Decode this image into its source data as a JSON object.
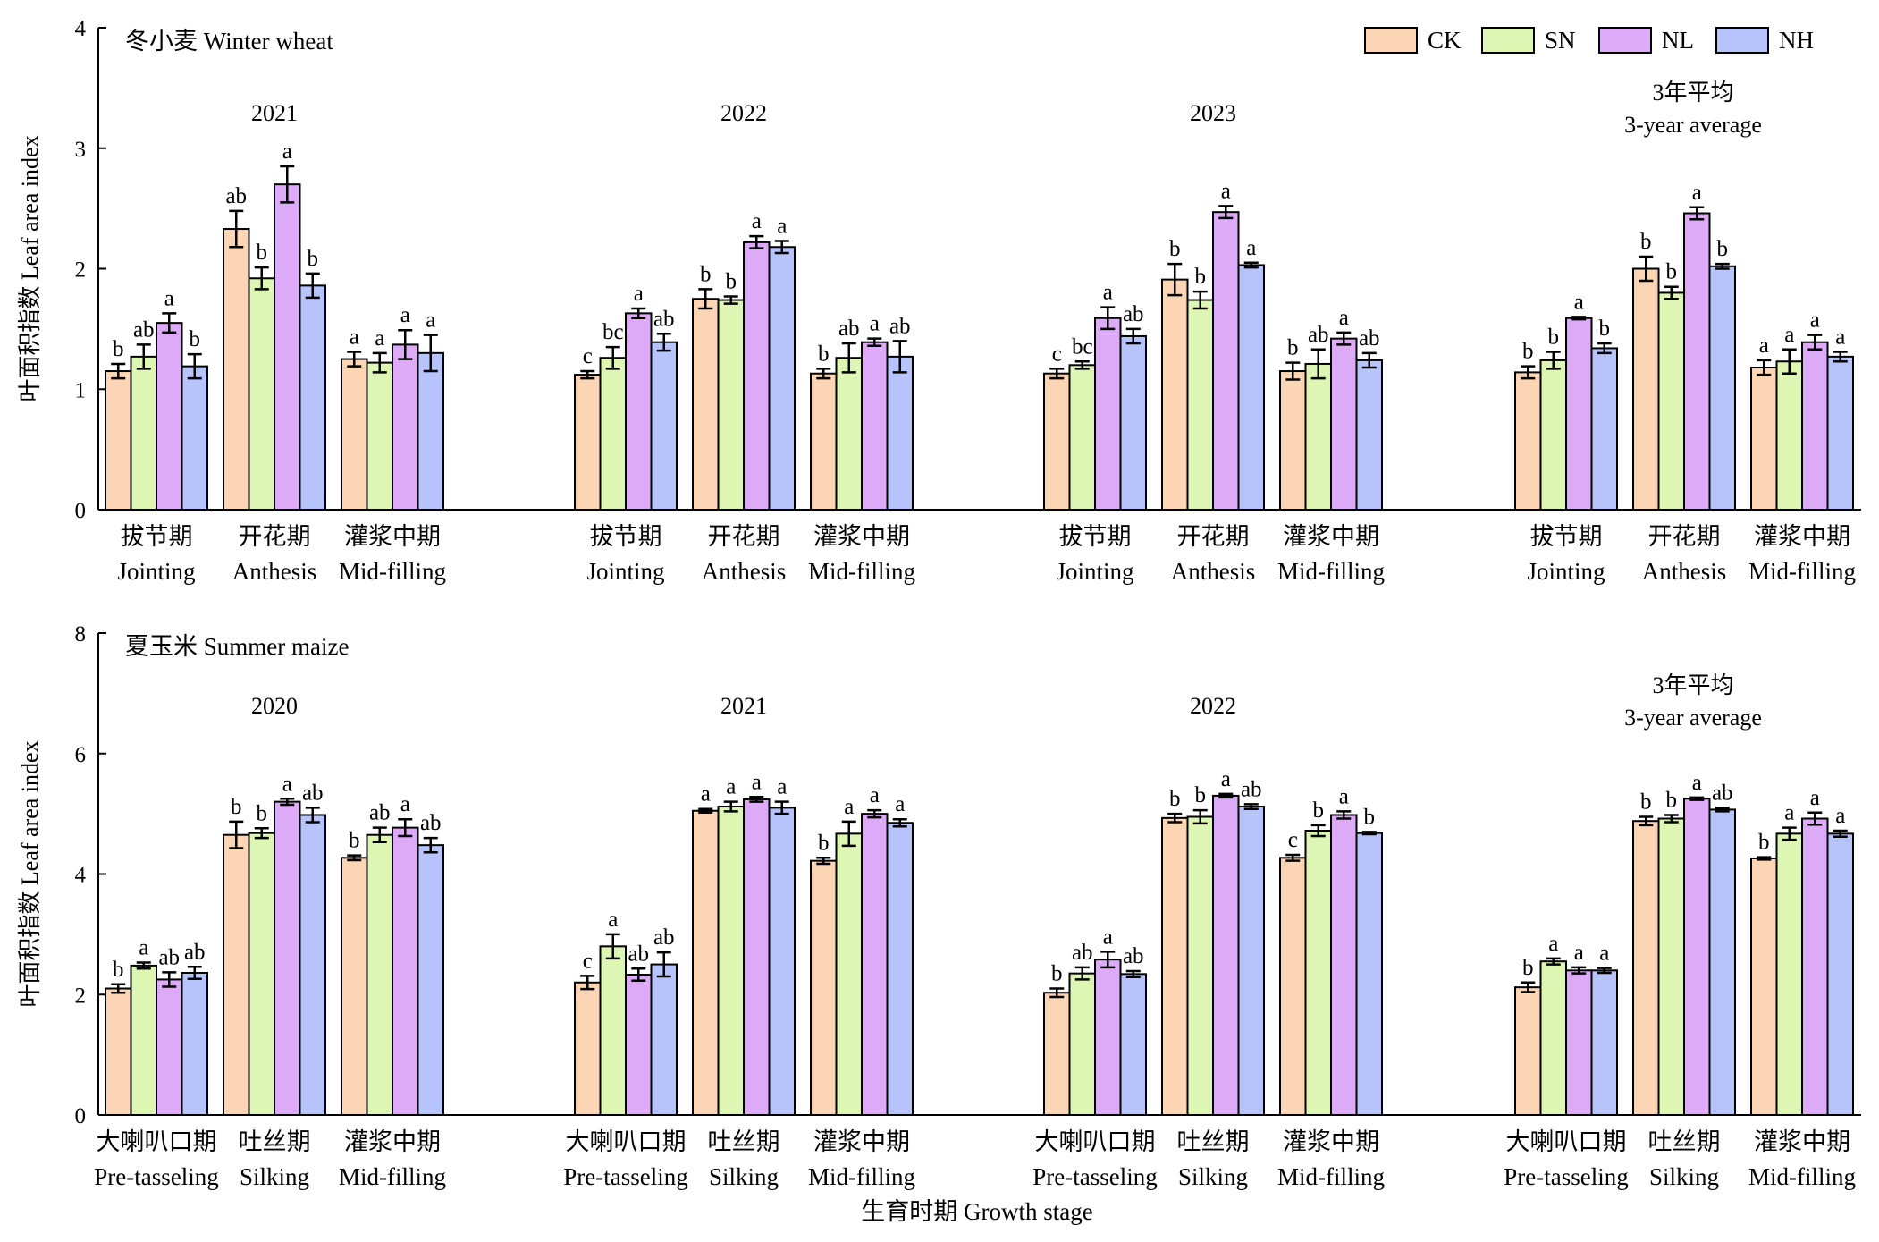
{
  "legend": [
    {
      "key": "CK",
      "color": "#fcd5b4"
    },
    {
      "key": "SN",
      "color": "#ddf6b4"
    },
    {
      "key": "NL",
      "color": "#dcaaf7"
    },
    {
      "key": "NH",
      "color": "#b7c3fb"
    }
  ],
  "xlabel": "生育时期 Growth stage",
  "chart_data": [
    {
      "type": "bar",
      "title": "冬小麦 Winter wheat",
      "ylabel": "叶面积指数  Leaf area index",
      "ylim": [
        0,
        4
      ],
      "yticks": [
        "0",
        "1",
        "2",
        "3",
        "4"
      ],
      "series_names": [
        "CK",
        "SN",
        "NL",
        "NH"
      ],
      "groups": [
        {
          "year": [
            "2021"
          ],
          "stages": [
            {
              "zh": "拔节期",
              "en": "Jointing",
              "values": [
                1.15,
                1.27,
                1.55,
                1.19
              ],
              "errors": [
                0.06,
                0.1,
                0.08,
                0.1
              ],
              "letters": [
                "b",
                "ab",
                "a",
                "b"
              ]
            },
            {
              "zh": "开花期",
              "en": "Anthesis",
              "values": [
                2.33,
                1.92,
                2.7,
                1.86
              ],
              "errors": [
                0.15,
                0.09,
                0.15,
                0.1
              ],
              "letters": [
                "ab",
                "b",
                "a",
                "b"
              ]
            },
            {
              "zh": "灌浆中期",
              "en": "Mid-filling",
              "values": [
                1.25,
                1.22,
                1.37,
                1.3
              ],
              "errors": [
                0.06,
                0.08,
                0.12,
                0.15
              ],
              "letters": [
                "a",
                "a",
                "a",
                "a"
              ]
            }
          ]
        },
        {
          "year": [
            "2022"
          ],
          "stages": [
            {
              "zh": "拔节期",
              "en": "Jointing",
              "values": [
                1.12,
                1.26,
                1.63,
                1.39
              ],
              "errors": [
                0.03,
                0.09,
                0.04,
                0.07
              ],
              "letters": [
                "c",
                "bc",
                "a",
                "ab"
              ]
            },
            {
              "zh": "开花期",
              "en": "Anthesis",
              "values": [
                1.75,
                1.74,
                2.22,
                2.18
              ],
              "errors": [
                0.08,
                0.03,
                0.05,
                0.05
              ],
              "letters": [
                "b",
                "b",
                "a",
                "a"
              ]
            },
            {
              "zh": "灌浆中期",
              "en": "Mid-filling",
              "values": [
                1.13,
                1.26,
                1.39,
                1.27
              ],
              "errors": [
                0.04,
                0.12,
                0.03,
                0.13
              ],
              "letters": [
                "b",
                "ab",
                "a",
                "ab"
              ]
            }
          ]
        },
        {
          "year": [
            "2023"
          ],
          "stages": [
            {
              "zh": "拔节期",
              "en": "Jointing",
              "values": [
                1.13,
                1.2,
                1.59,
                1.44
              ],
              "errors": [
                0.04,
                0.03,
                0.09,
                0.06
              ],
              "letters": [
                "c",
                "bc",
                "a",
                "ab"
              ]
            },
            {
              "zh": "开花期",
              "en": "Anthesis",
              "values": [
                1.91,
                1.74,
                2.47,
                2.03
              ],
              "errors": [
                0.13,
                0.07,
                0.05,
                0.02
              ],
              "letters": [
                "b",
                "b",
                "a",
                "a"
              ]
            },
            {
              "zh": "灌浆中期",
              "en": "Mid-filling",
              "values": [
                1.15,
                1.21,
                1.42,
                1.24
              ],
              "errors": [
                0.07,
                0.12,
                0.05,
                0.06
              ],
              "letters": [
                "b",
                "ab",
                "a",
                "ab"
              ]
            }
          ]
        },
        {
          "year": [
            "3年平均",
            "3-year average"
          ],
          "stages": [
            {
              "zh": "拔节期",
              "en": "Jointing",
              "values": [
                1.14,
                1.24,
                1.59,
                1.34
              ],
              "errors": [
                0.05,
                0.07,
                0.01,
                0.04
              ],
              "letters": [
                "b",
                "b",
                "a",
                "b"
              ]
            },
            {
              "zh": "开花期",
              "en": "Anthesis",
              "values": [
                2.0,
                1.8,
                2.46,
                2.02
              ],
              "errors": [
                0.1,
                0.05,
                0.05,
                0.02
              ],
              "letters": [
                "b",
                "b",
                "a",
                "b"
              ]
            },
            {
              "zh": "灌浆中期",
              "en": "Mid-filling",
              "values": [
                1.18,
                1.23,
                1.39,
                1.27
              ],
              "errors": [
                0.06,
                0.1,
                0.06,
                0.04
              ],
              "letters": [
                "a",
                "a",
                "a",
                "a"
              ]
            }
          ]
        }
      ]
    },
    {
      "type": "bar",
      "title": "夏玉米 Summer maize",
      "ylabel": "叶面积指数  Leaf area index",
      "ylim": [
        0,
        8
      ],
      "yticks": [
        "0",
        "2",
        "4",
        "6",
        "8"
      ],
      "series_names": [
        "CK",
        "SN",
        "NL",
        "NH"
      ],
      "groups": [
        {
          "year": [
            "2020"
          ],
          "stages": [
            {
              "zh": "大喇叭口期",
              "en": "Pre-tasseling",
              "values": [
                2.1,
                2.48,
                2.25,
                2.36
              ],
              "errors": [
                0.07,
                0.05,
                0.12,
                0.1
              ],
              "letters": [
                "b",
                "a",
                "ab",
                "ab"
              ]
            },
            {
              "zh": "吐丝期",
              "en": "Silking",
              "values": [
                4.65,
                4.68,
                5.2,
                4.98
              ],
              "errors": [
                0.22,
                0.08,
                0.05,
                0.12
              ],
              "letters": [
                "b",
                "b",
                "a",
                "ab"
              ]
            },
            {
              "zh": "灌浆中期",
              "en": "Mid-filling",
              "values": [
                4.27,
                4.65,
                4.77,
                4.48
              ],
              "errors": [
                0.04,
                0.12,
                0.14,
                0.12
              ],
              "letters": [
                "b",
                "ab",
                "a",
                "ab"
              ]
            }
          ]
        },
        {
          "year": [
            "2021"
          ],
          "stages": [
            {
              "zh": "大喇叭口期",
              "en": "Pre-tasseling",
              "values": [
                2.2,
                2.8,
                2.33,
                2.5
              ],
              "errors": [
                0.11,
                0.2,
                0.1,
                0.2
              ],
              "letters": [
                "c",
                "a",
                "ab",
                "ab"
              ]
            },
            {
              "zh": "吐丝期",
              "en": "Silking",
              "values": [
                5.05,
                5.12,
                5.24,
                5.1
              ],
              "errors": [
                0.03,
                0.08,
                0.04,
                0.1
              ],
              "letters": [
                "a",
                "a",
                "a",
                "a"
              ]
            },
            {
              "zh": "灌浆中期",
              "en": "Mid-filling",
              "values": [
                4.22,
                4.67,
                5.0,
                4.85
              ],
              "errors": [
                0.05,
                0.2,
                0.06,
                0.06
              ],
              "letters": [
                "b",
                "a",
                "a",
                "a"
              ]
            }
          ]
        },
        {
          "year": [
            "2022"
          ],
          "stages": [
            {
              "zh": "大喇叭口期",
              "en": "Pre-tasseling",
              "values": [
                2.03,
                2.35,
                2.58,
                2.34
              ],
              "errors": [
                0.07,
                0.1,
                0.13,
                0.05
              ],
              "letters": [
                "b",
                "ab",
                "a",
                "ab"
              ]
            },
            {
              "zh": "吐丝期",
              "en": "Silking",
              "values": [
                4.93,
                4.95,
                5.3,
                5.12
              ],
              "errors": [
                0.07,
                0.11,
                0.03,
                0.04
              ],
              "letters": [
                "b",
                "b",
                "a",
                "ab"
              ]
            },
            {
              "zh": "灌浆中期",
              "en": "Mid-filling",
              "values": [
                4.27,
                4.72,
                4.98,
                4.68
              ],
              "errors": [
                0.05,
                0.09,
                0.06,
                0.02
              ],
              "letters": [
                "c",
                "b",
                "a",
                "b"
              ]
            }
          ]
        },
        {
          "year": [
            "3年平均",
            "3-year average"
          ],
          "stages": [
            {
              "zh": "大喇叭口期",
              "en": "Pre-tasseling",
              "values": [
                2.12,
                2.55,
                2.4,
                2.4
              ],
              "errors": [
                0.08,
                0.05,
                0.05,
                0.04
              ],
              "letters": [
                "b",
                "a",
                "a",
                "a"
              ]
            },
            {
              "zh": "吐丝期",
              "en": "Silking",
              "values": [
                4.88,
                4.92,
                5.25,
                5.07
              ],
              "errors": [
                0.07,
                0.06,
                0.02,
                0.03
              ],
              "letters": [
                "b",
                "b",
                "a",
                "ab"
              ]
            },
            {
              "zh": "灌浆中期",
              "en": "Mid-filling",
              "values": [
                4.26,
                4.67,
                4.92,
                4.67
              ],
              "errors": [
                0.02,
                0.1,
                0.1,
                0.05
              ],
              "letters": [
                "b",
                "a",
                "a",
                "a"
              ]
            }
          ]
        }
      ]
    }
  ]
}
